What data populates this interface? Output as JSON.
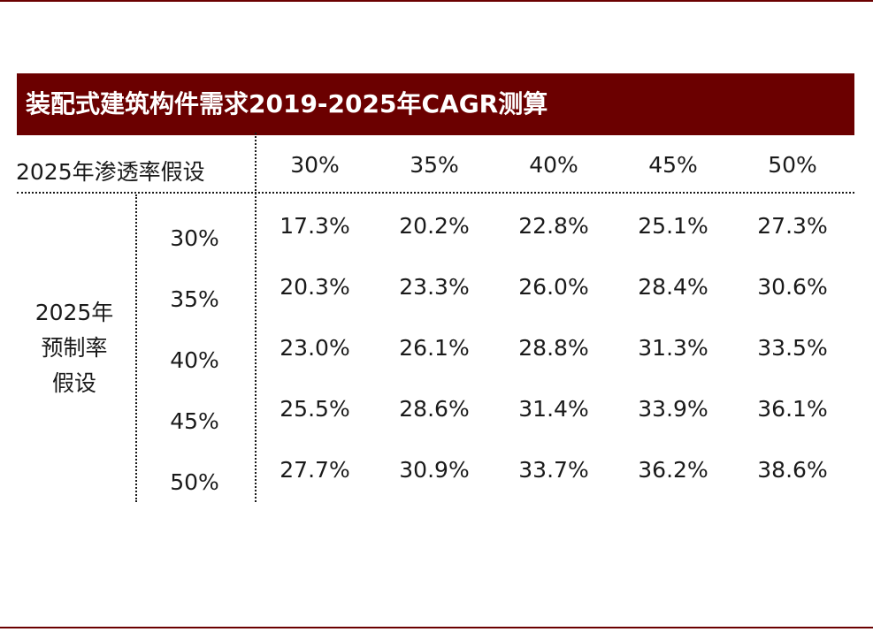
{
  "title": "装配式建筑构件需求2019-2025年CAGR测算",
  "column_header_label": "2025年渗透率假设",
  "row_header_label": [
    "2025年",
    "预制率",
    "假设"
  ],
  "columns": [
    "30%",
    "35%",
    "40%",
    "45%",
    "50%"
  ],
  "rows": [
    {
      "label": "30%",
      "values": [
        "17.3%",
        "20.2%",
        "22.8%",
        "25.1%",
        "27.3%"
      ]
    },
    {
      "label": "35%",
      "values": [
        "20.3%",
        "23.3%",
        "26.0%",
        "28.4%",
        "30.6%"
      ]
    },
    {
      "label": "40%",
      "values": [
        "23.0%",
        "26.1%",
        "28.8%",
        "31.3%",
        "33.5%"
      ]
    },
    {
      "label": "45%",
      "values": [
        "25.5%",
        "28.6%",
        "31.4%",
        "33.9%",
        "36.1%"
      ]
    },
    {
      "label": "50%",
      "values": [
        "27.7%",
        "30.9%",
        "33.7%",
        "36.2%",
        "38.6%"
      ]
    }
  ],
  "colors": {
    "accent": "#6b0000",
    "text": "#1a1a1a",
    "background": "#ffffff"
  }
}
